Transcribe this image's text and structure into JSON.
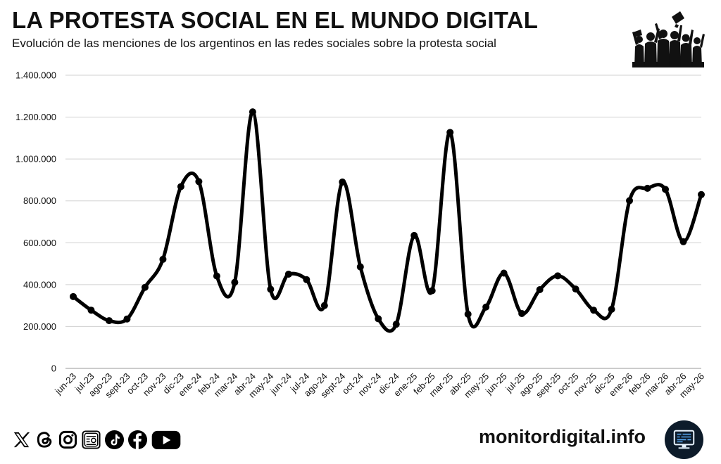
{
  "header": {
    "title": "LA PROTESTA SOCIAL EN EL MUNDO DIGITAL",
    "subtitle": "Evolución de las menciones de los argentinos en las redes sociales sobre la protesta social",
    "logo_icon": "protest-crowd-icon"
  },
  "chart_data": {
    "type": "line",
    "title": "",
    "xlabel": "",
    "ylabel": "",
    "ylim": [
      0,
      1400000
    ],
    "yticks": [
      "0",
      "200.000",
      "400.000",
      "600.000",
      "800.000",
      "1.000.000",
      "1.200.000",
      "1.400.000"
    ],
    "categories": [
      "jun-23",
      "jul-23",
      "ago-23",
      "sept-23",
      "oct-23",
      "nov-23",
      "dic-23",
      "ene-24",
      "feb-24",
      "mar-24",
      "abr-24",
      "may-24",
      "jun-24",
      "jul-24",
      "ago-24",
      "sept-24",
      "oct-24",
      "nov-24",
      "dic-24",
      "ene-25",
      "feb-25",
      "mar-25",
      "abr-25",
      "may-25",
      "jun-25",
      "jul-25",
      "ago-25",
      "sept-25",
      "oct-25",
      "nov-25",
      "dic-25",
      "ene-26",
      "feb-26",
      "mar-26",
      "abr-26",
      "may-26"
    ],
    "series": [
      {
        "values": [
          343000,
          278000,
          228000,
          236000,
          387000,
          521000,
          868000,
          892000,
          441000,
          411000,
          1225000,
          378000,
          450000,
          424000,
          300000,
          890000,
          485000,
          237000,
          211000,
          635000,
          371000,
          1127000,
          259000,
          293000,
          455000,
          262000,
          376000,
          442000,
          379000,
          278000,
          282000,
          801000,
          860000,
          855000,
          605000,
          830000
        ],
        "color": "#000000"
      }
    ],
    "grid": true,
    "legend": "none"
  },
  "footer": {
    "social_icons": [
      "x-icon",
      "threads-icon",
      "instagram-icon",
      "newsletter-icon",
      "tiktok-icon",
      "facebook-icon",
      "youtube-icon"
    ],
    "site": "monitordigital.info",
    "site_icon": "monitor-icon"
  }
}
